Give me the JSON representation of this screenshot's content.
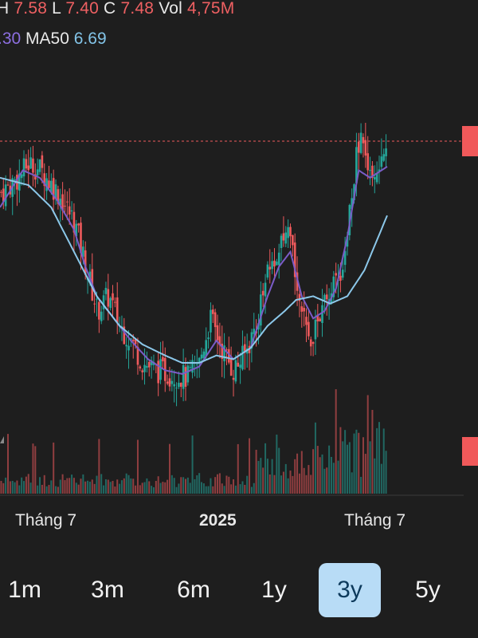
{
  "legend": {
    "h_label": "H",
    "h_value": "7.58",
    "l_label": "L",
    "l_value": "7.40",
    "c_label": "C",
    "c_value": "7.48",
    "vol_label": "Vol",
    "vol_value": "4,75M",
    "ma_short_value": ".30",
    "ma50_label": "MA50",
    "ma50_value": "6.69"
  },
  "x_labels": [
    "Tháng 7",
    "2025",
    "Tháng 7"
  ],
  "ranges": [
    "1m",
    "3m",
    "6m",
    "1y",
    "3y",
    "5y"
  ],
  "active_range": "3y",
  "colors": {
    "up": "#24a69a",
    "down": "#ef5a5c",
    "ma_short": "#7b5cc7",
    "ma50": "#8cc8ea",
    "background": "#1e1e1e",
    "grid": "#3a3a3a"
  },
  "chart_data": {
    "type": "candlestick",
    "y_range_approx": [
      4.0,
      8.2
    ],
    "current_price": 7.48,
    "ma50_latest": 6.69,
    "x_tick_labels": [
      "Tháng 7",
      "2025",
      "Tháng 7"
    ],
    "price_path_approx": [
      [
        0,
        7.0
      ],
      [
        6,
        7.2
      ],
      [
        10,
        7.4
      ],
      [
        14,
        7.3
      ],
      [
        20,
        7.0
      ],
      [
        26,
        6.6
      ],
      [
        30,
        6.0
      ],
      [
        34,
        5.4
      ],
      [
        38,
        5.6
      ],
      [
        42,
        5.2
      ],
      [
        46,
        5.0
      ],
      [
        50,
        4.7
      ],
      [
        55,
        4.6
      ],
      [
        60,
        4.55
      ],
      [
        66,
        4.5
      ],
      [
        70,
        4.7
      ],
      [
        74,
        5.3
      ],
      [
        78,
        4.9
      ],
      [
        82,
        4.6
      ],
      [
        86,
        4.8
      ],
      [
        90,
        5.2
      ],
      [
        94,
        5.9
      ],
      [
        98,
        6.2
      ],
      [
        102,
        6.4
      ],
      [
        106,
        5.5
      ],
      [
        108,
        5.0
      ],
      [
        110,
        5.1
      ],
      [
        112,
        5.3
      ],
      [
        116,
        5.6
      ],
      [
        120,
        5.9
      ],
      [
        124,
        7.0
      ],
      [
        126,
        7.6
      ],
      [
        128,
        7.8
      ],
      [
        130,
        7.3
      ],
      [
        132,
        7.1
      ],
      [
        134,
        7.3
      ],
      [
        136,
        7.48
      ]
    ],
    "ma_short_path_approx": [
      [
        0,
        6.8
      ],
      [
        8,
        7.3
      ],
      [
        14,
        7.2
      ],
      [
        20,
        6.9
      ],
      [
        26,
        6.5
      ],
      [
        30,
        6.0
      ],
      [
        34,
        5.6
      ],
      [
        40,
        5.3
      ],
      [
        46,
        5.0
      ],
      [
        52,
        4.75
      ],
      [
        58,
        4.6
      ],
      [
        64,
        4.55
      ],
      [
        70,
        4.65
      ],
      [
        76,
        5.0
      ],
      [
        82,
        4.75
      ],
      [
        88,
        4.9
      ],
      [
        94,
        5.6
      ],
      [
        98,
        6.0
      ],
      [
        102,
        6.2
      ],
      [
        106,
        5.6
      ],
      [
        110,
        5.3
      ],
      [
        114,
        5.4
      ],
      [
        118,
        5.7
      ],
      [
        122,
        6.4
      ],
      [
        126,
        7.3
      ],
      [
        130,
        7.2
      ],
      [
        136,
        7.35
      ]
    ],
    "ma50_path_approx": [
      [
        0,
        7.2
      ],
      [
        10,
        7.1
      ],
      [
        18,
        6.8
      ],
      [
        26,
        6.2
      ],
      [
        34,
        5.6
      ],
      [
        42,
        5.2
      ],
      [
        50,
        4.95
      ],
      [
        58,
        4.8
      ],
      [
        64,
        4.7
      ],
      [
        70,
        4.7
      ],
      [
        76,
        4.8
      ],
      [
        82,
        4.75
      ],
      [
        88,
        4.9
      ],
      [
        94,
        5.2
      ],
      [
        100,
        5.4
      ],
      [
        104,
        5.55
      ],
      [
        110,
        5.6
      ],
      [
        116,
        5.5
      ],
      [
        122,
        5.6
      ],
      [
        128,
        5.95
      ],
      [
        136,
        6.69
      ]
    ]
  }
}
